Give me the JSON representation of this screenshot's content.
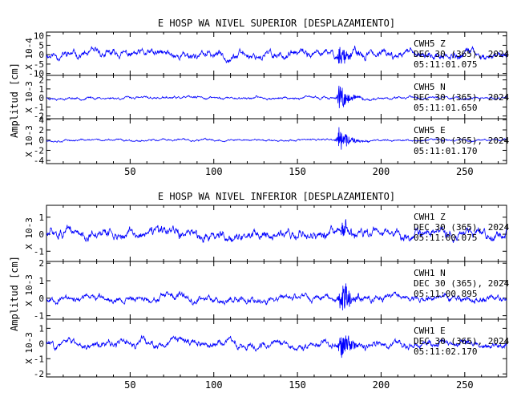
{
  "figure": {
    "ylabel": "Amplitud [cm]",
    "trace_color": "#0000ff",
    "axis_color": "#000000"
  },
  "chart_data": [
    {
      "type": "line",
      "title": "E HOSP WA NIVEL SUPERIOR [DESPLAZAMIENTO]",
      "xlim": [
        0,
        275
      ],
      "xticks": [
        50,
        100,
        150,
        200,
        250
      ],
      "ylabel": "Amplitud [cm]",
      "traces": [
        {
          "station": "CWH5",
          "component": "Z",
          "date": "DEC 30 (365), 2024",
          "time": "05:11:01.075",
          "scale": "X 10-4",
          "ylim": [
            -11,
            12
          ],
          "yticks": [
            -10,
            -5,
            0,
            5,
            10
          ],
          "noise": 3.8,
          "burst_amp": 8.5,
          "burst_center": 175,
          "seed": 11
        },
        {
          "station": "CWH5",
          "component": "N",
          "date": "DEC 30 (365), 2024",
          "time": "05:11:01.650",
          "scale": "X 10-3",
          "ylim": [
            -2.3,
            2.5
          ],
          "yticks": [
            -2,
            -1,
            0,
            1,
            2
          ],
          "noise": 0.25,
          "burst_amp": 2.0,
          "burst_center": 175,
          "seed": 23
        },
        {
          "station": "CWH5",
          "component": "E",
          "date": "DEC 30 (365), 2024",
          "time": "05:11:01.170",
          "scale": "X 10-3",
          "ylim": [
            -4.6,
            4.2
          ],
          "yticks": [
            -4,
            -2,
            0,
            2,
            4
          ],
          "noise": 0.35,
          "burst_amp": 3.5,
          "burst_center": 175,
          "seed": 37
        }
      ]
    },
    {
      "type": "line",
      "title": "E HOSP WA NIVEL INFERIOR [DESPLAZAMIENTO]",
      "xlim": [
        0,
        275
      ],
      "xticks": [
        50,
        100,
        150,
        200,
        250
      ],
      "ylabel": "Amplitud [cm]",
      "traces": [
        {
          "station": "CWH1",
          "component": "Z",
          "date": "DEC 30 (365), 2024",
          "time": "05:11:00.075",
          "scale": "X 10-3",
          "ylim": [
            -1.6,
            1.7
          ],
          "yticks": [
            -1,
            0,
            1
          ],
          "noise": 0.55,
          "burst_amp": 0.6,
          "burst_center": 176,
          "seed": 51
        },
        {
          "station": "CWH1",
          "component": "N",
          "date": "DEC 30 (365), 2024",
          "time": "05:11:00.895",
          "scale": "X 10-3",
          "ylim": [
            -1.2,
            2.1
          ],
          "yticks": [
            -1,
            0,
            1,
            2
          ],
          "noise": 0.35,
          "burst_amp": 1.4,
          "burst_center": 176,
          "seed": 67
        },
        {
          "station": "CWH1",
          "component": "E",
          "date": "DEC 30 (365), 2024",
          "time": "05:11:02.170",
          "scale": "X 10-3",
          "ylim": [
            -2.2,
            1.6
          ],
          "yticks": [
            -2,
            -1,
            0,
            1
          ],
          "noise": 0.45,
          "burst_amp": 1.3,
          "burst_center": 176,
          "seed": 83
        }
      ]
    }
  ]
}
